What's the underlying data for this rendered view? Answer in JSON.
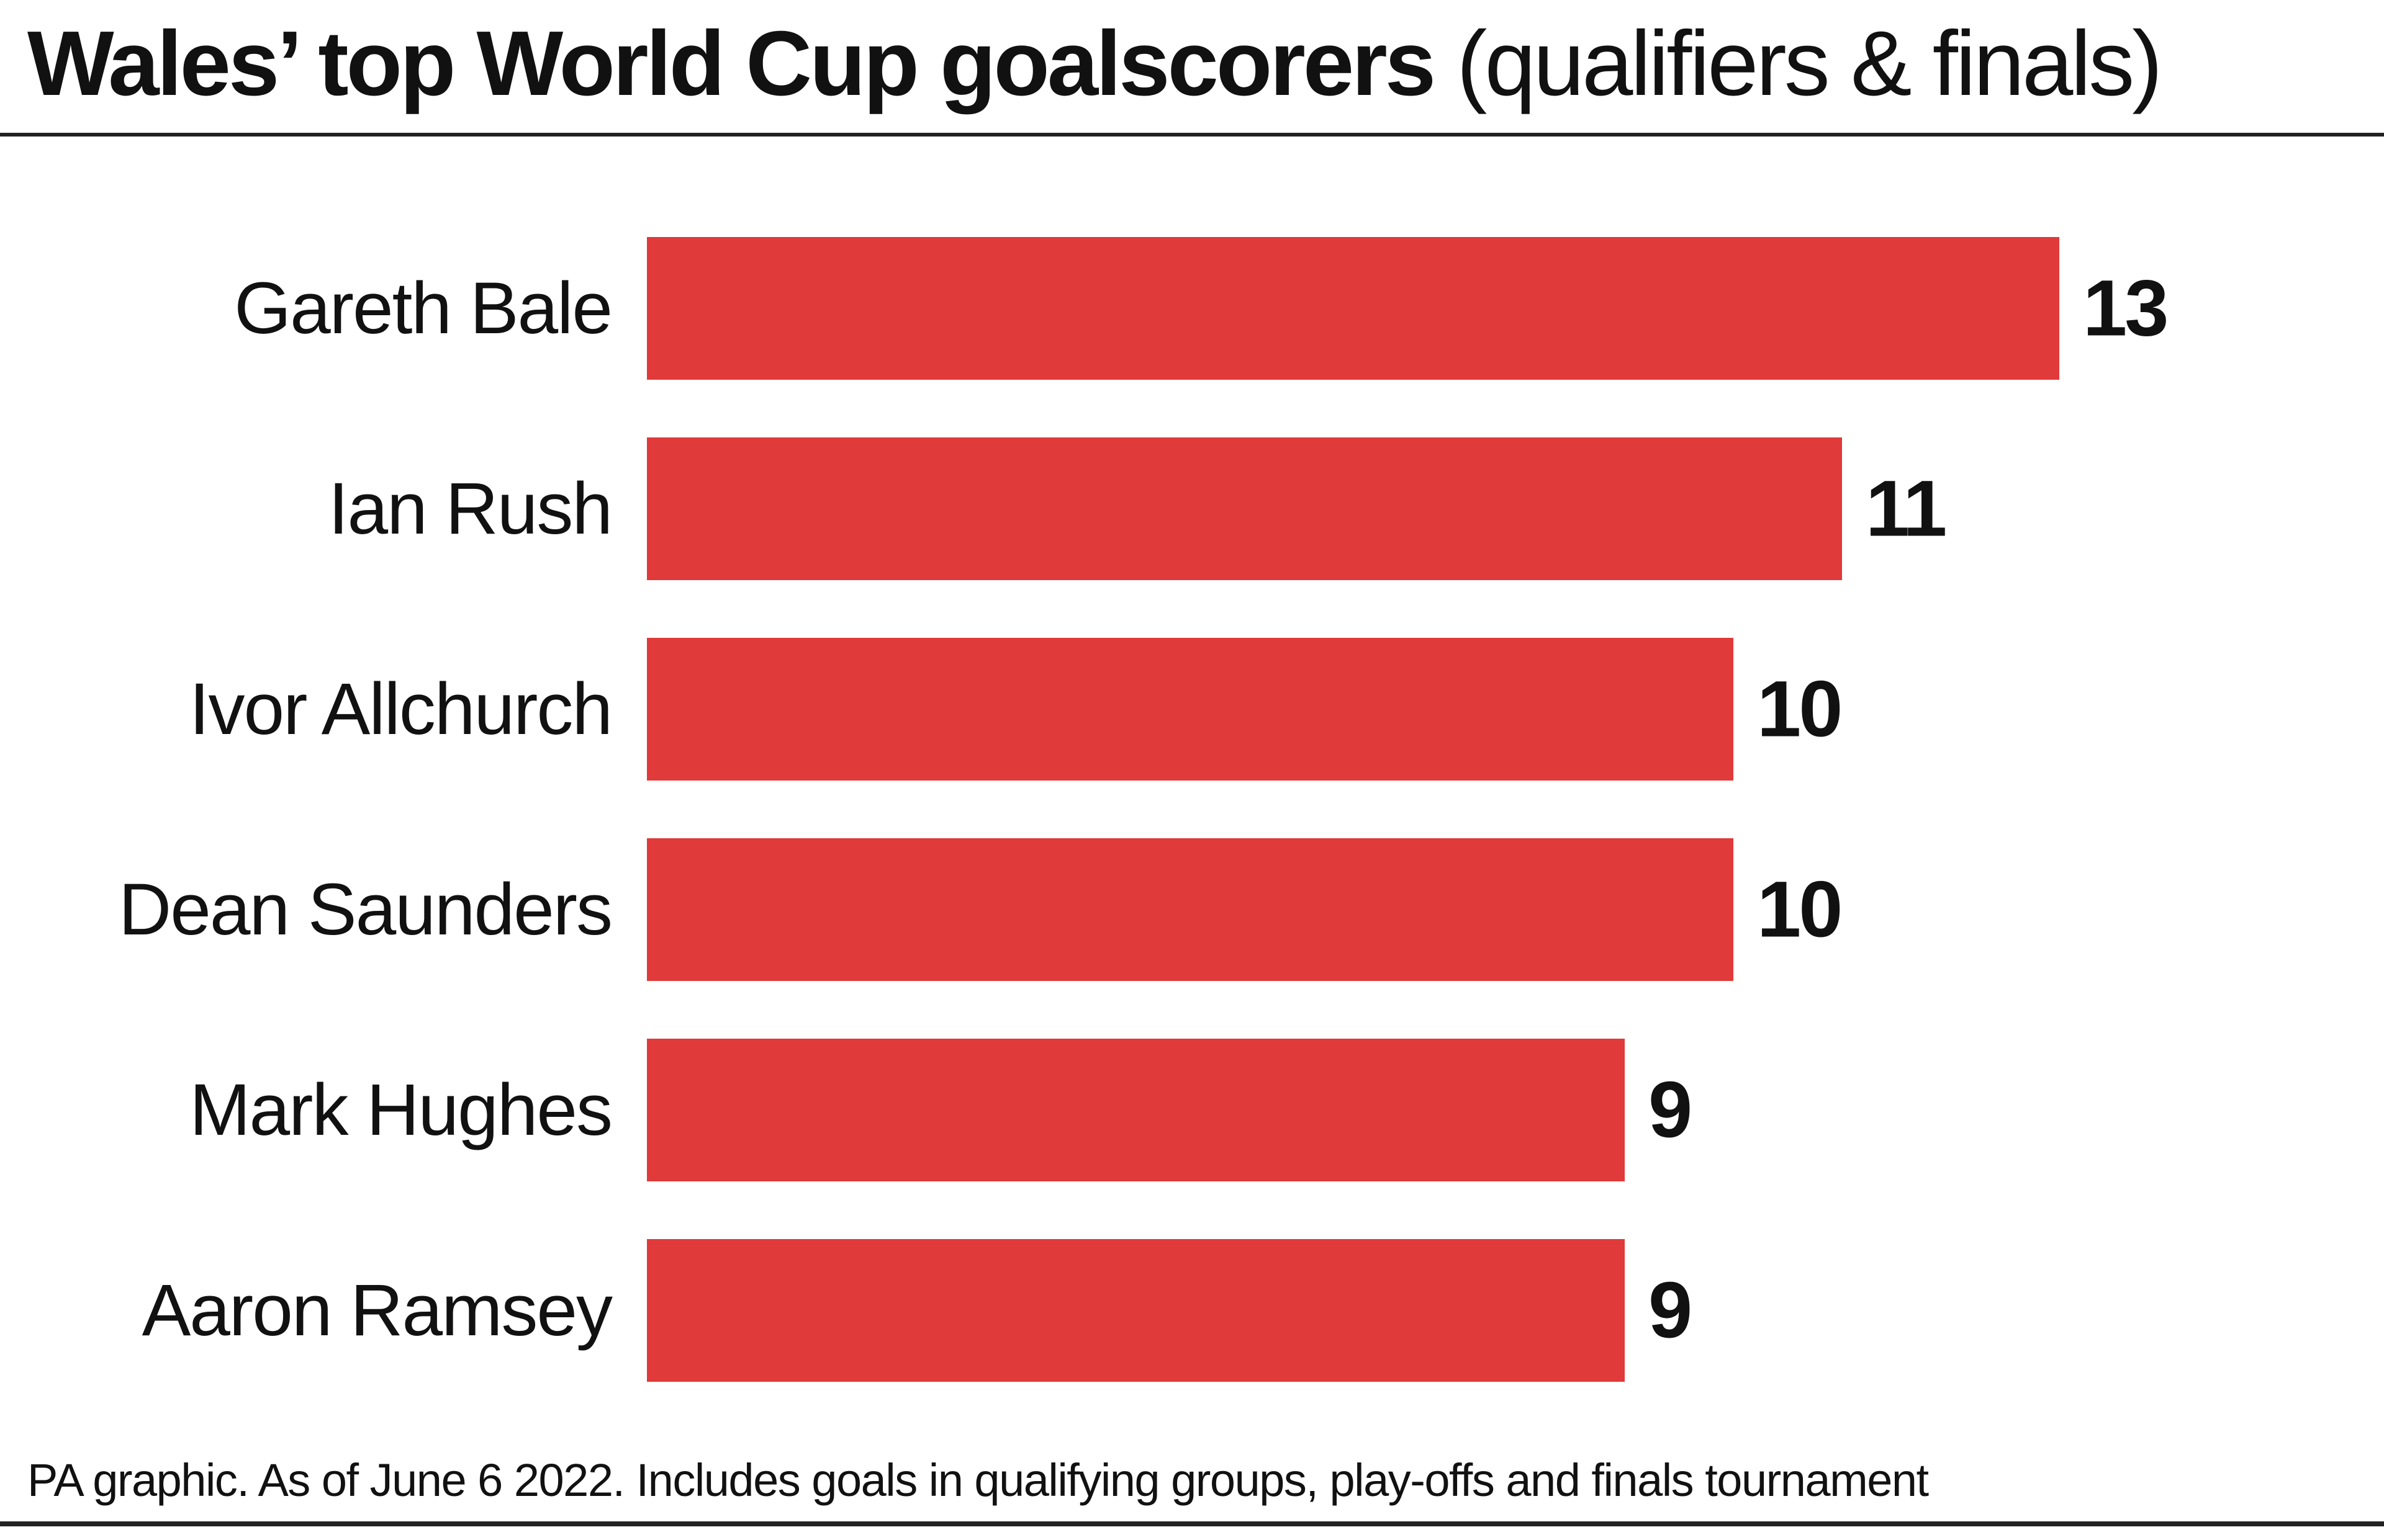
{
  "header": {
    "title_main": "Wales’ top World Cup goalscorers",
    "title_sub": "(qualifiers & finals)"
  },
  "chart_data": {
    "type": "bar",
    "orientation": "horizontal",
    "title": "Wales’ top World Cup goalscorers (qualifiers & finals)",
    "categories": [
      "Gareth Bale",
      "Ian Rush",
      "Ivor Allchurch",
      "Dean Saunders",
      "Mark Hughes",
      "Aaron Ramsey"
    ],
    "values": [
      13,
      11,
      10,
      10,
      9,
      9
    ],
    "bar_color": "#e03a3a",
    "xlabel": "",
    "ylabel": "",
    "grid": false,
    "legend": "none",
    "data_labels": true
  },
  "footer": {
    "note": "PA graphic. As of June 6 2022. Includes goals in qualifying groups, play-offs and finals tournament"
  }
}
